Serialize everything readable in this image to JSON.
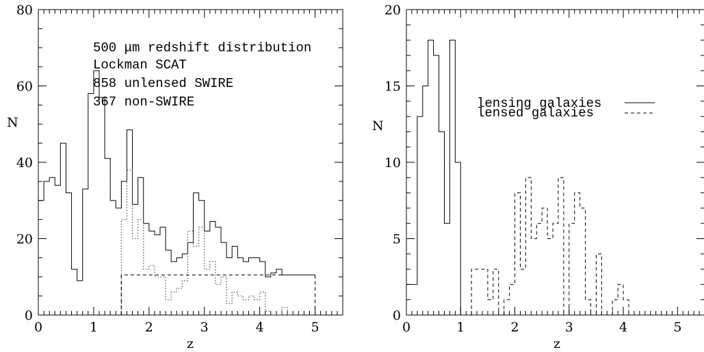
{
  "chart_data": [
    {
      "type": "step",
      "xlabel": "z",
      "ylabel": "N",
      "xlim": [
        0,
        5.5
      ],
      "ylim": [
        0,
        80
      ],
      "xticks": [
        0,
        1,
        2,
        3,
        4,
        5
      ],
      "yticks": [
        0,
        20,
        40,
        60,
        80
      ],
      "annotations": [
        "500 μm redshift distribution",
        "Lockman SCAT",
        "858 unlensed SWIRE",
        "367 non-SWIRE"
      ],
      "series": [
        {
          "style": "solid",
          "x": [
            0,
            0.1,
            0.2,
            0.3,
            0.4,
            0.5,
            0.6,
            0.7,
            0.8,
            0.9,
            1.0,
            1.1,
            1.2,
            1.3,
            1.4,
            1.5,
            1.6,
            1.7,
            1.8,
            1.9,
            2.0,
            2.1,
            2.2,
            2.3,
            2.4,
            2.5,
            2.6,
            2.7,
            2.8,
            2.9,
            3.0,
            3.1,
            3.2,
            3.3,
            3.4,
            3.5,
            3.6,
            3.7,
            3.8,
            3.9,
            4.0,
            4.1,
            4.2,
            4.3,
            4.4,
            4.5,
            5.0
          ],
          "y": [
            30,
            35,
            36,
            34,
            45,
            32,
            12,
            9,
            33,
            58,
            64,
            57,
            41,
            30,
            28,
            35,
            48.5,
            29,
            36,
            24,
            22,
            21,
            23,
            17,
            14,
            15,
            16,
            19,
            32,
            30,
            22,
            24.5,
            23,
            19,
            15,
            18,
            15,
            14,
            15,
            15,
            14,
            10,
            11,
            12,
            10.5,
            10.5,
            10.5
          ]
        },
        {
          "style": "dotted",
          "x": [
            1.5,
            1.6,
            1.7,
            1.8,
            1.9,
            2.0,
            2.1,
            2.2,
            2.3,
            2.4,
            2.5,
            2.6,
            2.7,
            2.8,
            2.9,
            3.0,
            3.1,
            3.2,
            3.3,
            3.4,
            3.5,
            3.6,
            3.7,
            3.8,
            3.9,
            4.0,
            4.1,
            4.2,
            4.3,
            4.4,
            4.5,
            4.6
          ],
          "y": [
            25,
            38,
            20,
            25,
            12,
            13,
            10,
            10,
            4,
            6,
            7,
            9,
            22,
            18,
            23,
            12,
            14,
            8,
            10,
            3,
            6,
            5,
            4,
            5,
            4,
            6,
            1,
            0,
            0,
            2,
            0,
            0
          ]
        },
        {
          "style": "dashed",
          "x": [
            1.5,
            5.0
          ],
          "y": [
            10.5,
            10.5
          ]
        }
      ]
    },
    {
      "type": "step",
      "xlabel": "z",
      "ylabel": "N",
      "xlim": [
        0,
        5.5
      ],
      "ylim": [
        0,
        20
      ],
      "xticks": [
        0,
        1,
        2,
        3,
        4,
        5
      ],
      "yticks": [
        0,
        5,
        10,
        15,
        20
      ],
      "legend": [
        {
          "label": "lensing galaxies",
          "style": "solid"
        },
        {
          "label": "lensed galaxies",
          "style": "dashed"
        }
      ],
      "series": [
        {
          "style": "solid",
          "x": [
            0,
            0.1,
            0.2,
            0.3,
            0.4,
            0.5,
            0.6,
            0.7,
            0.8,
            0.9,
            1.0
          ],
          "y": [
            2,
            2,
            13,
            15,
            18,
            17,
            12,
            6,
            18,
            10,
            10
          ]
        },
        {
          "style": "dashed",
          "x": [
            1.2,
            1.3,
            1.4,
            1.5,
            1.6,
            1.7,
            1.8,
            1.9,
            2.0,
            2.1,
            2.2,
            2.3,
            2.4,
            2.5,
            2.6,
            2.7,
            2.8,
            2.9,
            3.0,
            3.1,
            3.2,
            3.3,
            3.4,
            3.5,
            3.6,
            3.7,
            3.8,
            3.9,
            4.0,
            4.1
          ],
          "y": [
            3,
            3,
            3,
            1,
            3,
            0,
            1,
            2,
            8,
            3,
            9,
            5,
            6,
            7,
            5,
            6,
            9,
            0,
            6,
            8,
            7,
            1,
            0,
            4,
            0,
            0,
            1,
            2,
            1,
            1
          ]
        }
      ]
    }
  ]
}
